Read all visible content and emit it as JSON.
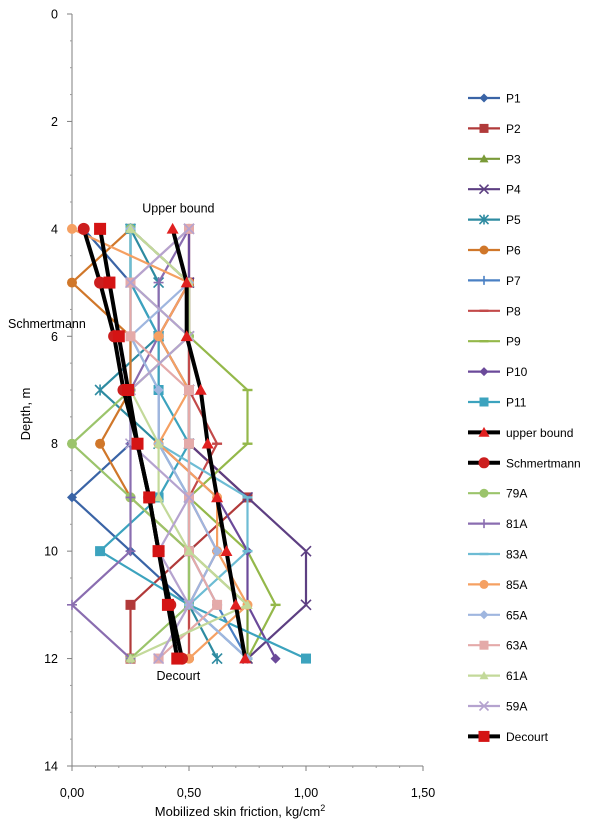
{
  "chart_data": {
    "type": "line",
    "xlabel": "Mobilized skin friction, kg/cm",
    "xlabel_superscript": "2",
    "ylabel": "Depth, m",
    "xlim": [
      0,
      1.5
    ],
    "ylim": [
      0,
      14
    ],
    "y_inverted": true,
    "x_axis_position": "bottom",
    "x_ticks": [
      0,
      0.5,
      1,
      1.5
    ],
    "x_tick_labels": [
      "0,00",
      "0,50",
      "1,00",
      "1,50"
    ],
    "y_ticks": [
      0,
      2,
      4,
      6,
      8,
      10,
      12,
      14
    ],
    "y_tick_labels": [
      "0",
      "2",
      "4",
      "6",
      "8",
      "10",
      "12",
      "14"
    ],
    "grid": false,
    "legend_position": "right",
    "annotations": [
      {
        "text": "Upper bound",
        "x": 0.54,
        "y": 3.7
      },
      {
        "text": "Schmertmann",
        "x": -0.27,
        "y": 5.85
      },
      {
        "text": "Decourt",
        "x": 0.54,
        "y": 12.4
      }
    ],
    "series": [
      {
        "name": "P1",
        "color": "#3a64a6",
        "marker": "diamond",
        "points": [
          [
            0.05,
            4
          ],
          [
            0.25,
            5
          ],
          [
            0.25,
            6
          ],
          [
            0.25,
            7
          ],
          [
            0.25,
            8
          ],
          [
            0,
            9
          ],
          [
            0.25,
            10
          ],
          [
            0.5,
            11
          ],
          [
            0.75,
            12
          ]
        ]
      },
      {
        "name": "P2",
        "color": "#b13a3a",
        "marker": "square",
        "points": [
          [
            0.25,
            4
          ],
          [
            0.5,
            5
          ],
          [
            0.37,
            6
          ],
          [
            0.5,
            7
          ],
          [
            0.5,
            8
          ],
          [
            0.75,
            9
          ],
          [
            0.5,
            10
          ],
          [
            0.25,
            11
          ],
          [
            0.25,
            12
          ]
        ]
      },
      {
        "name": "P3",
        "color": "#7a9a38",
        "marker": "triangle",
        "points": [
          [
            0.25,
            4
          ],
          [
            0.5,
            5
          ],
          [
            0.5,
            6
          ],
          [
            0.5,
            7
          ],
          [
            0.5,
            8
          ],
          [
            0.5,
            9
          ],
          [
            0.5,
            10
          ],
          [
            0.75,
            11
          ],
          [
            0.75,
            12
          ]
        ]
      },
      {
        "name": "P4",
        "color": "#5d3f82",
        "marker": "x",
        "points": [
          [
            0.5,
            4
          ],
          [
            0.5,
            5
          ],
          [
            0.5,
            6
          ],
          [
            0.5,
            7
          ],
          [
            0.5,
            8
          ],
          [
            0.75,
            9
          ],
          [
            1.0,
            10
          ],
          [
            1.0,
            11
          ],
          [
            0.75,
            12
          ]
        ]
      },
      {
        "name": "P5",
        "color": "#2e8ba1",
        "marker": "star",
        "points": [
          [
            0.25,
            4
          ],
          [
            0.37,
            5
          ],
          [
            0.37,
            6
          ],
          [
            0.12,
            7
          ],
          [
            0.37,
            8
          ],
          [
            0.5,
            9
          ],
          [
            0.5,
            10
          ],
          [
            0.5,
            11
          ],
          [
            0.62,
            12
          ]
        ]
      },
      {
        "name": "P6",
        "color": "#d0772a",
        "marker": "circle",
        "points": [
          [
            0.25,
            4
          ],
          [
            0,
            5
          ],
          [
            0.25,
            6
          ],
          [
            0.25,
            7
          ],
          [
            0.12,
            8
          ],
          [
            0.25,
            9
          ],
          [
            0.5,
            10
          ],
          [
            0.5,
            11
          ],
          [
            0.5,
            12
          ]
        ]
      },
      {
        "name": "P7",
        "color": "#4a80c4",
        "marker": "plus",
        "points": [
          [
            0.25,
            4
          ],
          [
            0.25,
            5
          ],
          [
            0.37,
            6
          ],
          [
            0.5,
            7
          ],
          [
            0.5,
            8
          ],
          [
            0.5,
            9
          ],
          [
            0.5,
            10
          ],
          [
            0.62,
            11
          ],
          [
            0.75,
            12
          ]
        ]
      },
      {
        "name": "P8",
        "color": "#c34a4a",
        "marker": "dash",
        "points": [
          [
            0.5,
            4
          ],
          [
            0.5,
            5
          ],
          [
            0.5,
            6
          ],
          [
            0.5,
            7
          ],
          [
            0.62,
            8
          ],
          [
            0.5,
            9
          ],
          [
            0.62,
            10
          ],
          [
            0.5,
            11
          ],
          [
            0.5,
            12
          ]
        ]
      },
      {
        "name": "P9",
        "color": "#94b84a",
        "marker": "dash",
        "points": [
          [
            0.25,
            4
          ],
          [
            0.5,
            5
          ],
          [
            0.5,
            6
          ],
          [
            0.75,
            7
          ],
          [
            0.75,
            8
          ],
          [
            0.5,
            9
          ],
          [
            0.75,
            10
          ],
          [
            0.87,
            11
          ],
          [
            0.75,
            12
          ]
        ]
      },
      {
        "name": "P10",
        "color": "#6b4a9a",
        "marker": "diamond",
        "points": [
          [
            0.5,
            4
          ],
          [
            0.5,
            5
          ],
          [
            0.37,
            6
          ],
          [
            0.37,
            7
          ],
          [
            0.37,
            8
          ],
          [
            0.62,
            9
          ],
          [
            0.75,
            10
          ],
          [
            0.75,
            11
          ],
          [
            0.87,
            12
          ]
        ]
      },
      {
        "name": "P11",
        "color": "#3ca3be",
        "marker": "square",
        "points": [
          [
            0.25,
            4
          ],
          [
            0.25,
            5
          ],
          [
            0.37,
            6
          ],
          [
            0.37,
            7
          ],
          [
            0.5,
            8
          ],
          [
            0.37,
            9
          ],
          [
            0.12,
            10
          ],
          [
            0.5,
            11
          ],
          [
            1.0,
            12
          ]
        ]
      },
      {
        "name": "upper bound",
        "color": "#000000",
        "marker": "triangle",
        "marker_color": "#e02020",
        "line_width": 4,
        "points": [
          [
            0.43,
            4
          ],
          [
            0.49,
            5
          ],
          [
            0.49,
            6
          ],
          [
            0.55,
            7
          ],
          [
            0.58,
            8
          ],
          [
            0.62,
            9
          ],
          [
            0.66,
            10
          ],
          [
            0.7,
            11
          ],
          [
            0.74,
            12
          ]
        ]
      },
      {
        "name": "Schmertmann",
        "color": "#000000",
        "marker": "circle",
        "marker_color": "#cc1e1e",
        "line_width": 4,
        "points": [
          [
            0.05,
            4
          ],
          [
            0.12,
            5
          ],
          [
            0.18,
            6
          ],
          [
            0.22,
            7
          ],
          [
            0.28,
            8
          ],
          [
            0.33,
            9
          ],
          [
            0.37,
            10
          ],
          [
            0.42,
            11
          ],
          [
            0.47,
            12
          ]
        ]
      },
      {
        "name": "79A",
        "color": "#9bc46b",
        "marker": "circle",
        "points": [
          [
            0.25,
            4
          ],
          [
            0.25,
            5
          ],
          [
            0.5,
            6
          ],
          [
            0.25,
            7
          ],
          [
            0,
            8
          ],
          [
            0.25,
            9
          ],
          [
            0.5,
            10
          ],
          [
            0.5,
            11
          ],
          [
            0.25,
            12
          ]
        ]
      },
      {
        "name": "81A",
        "color": "#8a6db0",
        "marker": "plus",
        "points": [
          [
            0.5,
            4
          ],
          [
            0.37,
            5
          ],
          [
            0.37,
            6
          ],
          [
            0.25,
            7
          ],
          [
            0.25,
            8
          ],
          [
            0.25,
            9
          ],
          [
            0.25,
            10
          ],
          [
            0,
            11
          ],
          [
            0.25,
            12
          ]
        ]
      },
      {
        "name": "83A",
        "color": "#6dbcd4",
        "marker": "dash",
        "points": [
          [
            0.25,
            4
          ],
          [
            0.25,
            5
          ],
          [
            0.25,
            6
          ],
          [
            0.37,
            7
          ],
          [
            0.37,
            8
          ],
          [
            0.75,
            9
          ],
          [
            0.75,
            10
          ],
          [
            0.5,
            11
          ],
          [
            0.75,
            12
          ]
        ]
      },
      {
        "name": "85A",
        "color": "#f5a062",
        "marker": "circle",
        "points": [
          [
            0,
            4
          ],
          [
            0.5,
            5
          ],
          [
            0.37,
            6
          ],
          [
            0.5,
            7
          ],
          [
            0.37,
            8
          ],
          [
            0.62,
            9
          ],
          [
            0.62,
            10
          ],
          [
            0.75,
            11
          ],
          [
            0.5,
            12
          ]
        ]
      },
      {
        "name": "65A",
        "color": "#9fb6df",
        "marker": "diamond",
        "points": [
          [
            0.25,
            4
          ],
          [
            0.5,
            5
          ],
          [
            0.25,
            6
          ],
          [
            0.37,
            7
          ],
          [
            0.37,
            8
          ],
          [
            0.5,
            9
          ],
          [
            0.62,
            10
          ],
          [
            0.5,
            11
          ],
          [
            0.75,
            12
          ]
        ]
      },
      {
        "name": "63A",
        "color": "#e4aaa9",
        "marker": "square",
        "points": [
          [
            0.5,
            4
          ],
          [
            0.25,
            5
          ],
          [
            0.25,
            6
          ],
          [
            0.5,
            7
          ],
          [
            0.5,
            8
          ],
          [
            0.5,
            9
          ],
          [
            0.5,
            10
          ],
          [
            0.62,
            11
          ],
          [
            0.37,
            12
          ]
        ]
      },
      {
        "name": "61A",
        "color": "#c3d99a",
        "marker": "triangle",
        "points": [
          [
            0.25,
            4
          ],
          [
            0.5,
            5
          ],
          [
            0.5,
            6
          ],
          [
            0.25,
            7
          ],
          [
            0.37,
            8
          ],
          [
            0.37,
            9
          ],
          [
            0.5,
            10
          ],
          [
            0.75,
            11
          ],
          [
            0.25,
            12
          ]
        ]
      },
      {
        "name": "59A",
        "color": "#b5a3cf",
        "marker": "x",
        "points": [
          [
            0.5,
            4
          ],
          [
            0.25,
            5
          ],
          [
            0.5,
            6
          ],
          [
            0.25,
            7
          ],
          [
            0.25,
            8
          ],
          [
            0.5,
            9
          ],
          [
            0.37,
            10
          ],
          [
            0.5,
            11
          ],
          [
            0.37,
            12
          ]
        ]
      },
      {
        "name": "Decourt",
        "color": "#000000",
        "marker": "square",
        "marker_color": "#d41414",
        "line_width": 4,
        "points": [
          [
            0.12,
            4
          ],
          [
            0.16,
            5
          ],
          [
            0.2,
            6
          ],
          [
            0.24,
            7
          ],
          [
            0.28,
            8
          ],
          [
            0.33,
            9
          ],
          [
            0.37,
            10
          ],
          [
            0.41,
            11
          ],
          [
            0.45,
            12
          ]
        ]
      }
    ]
  }
}
